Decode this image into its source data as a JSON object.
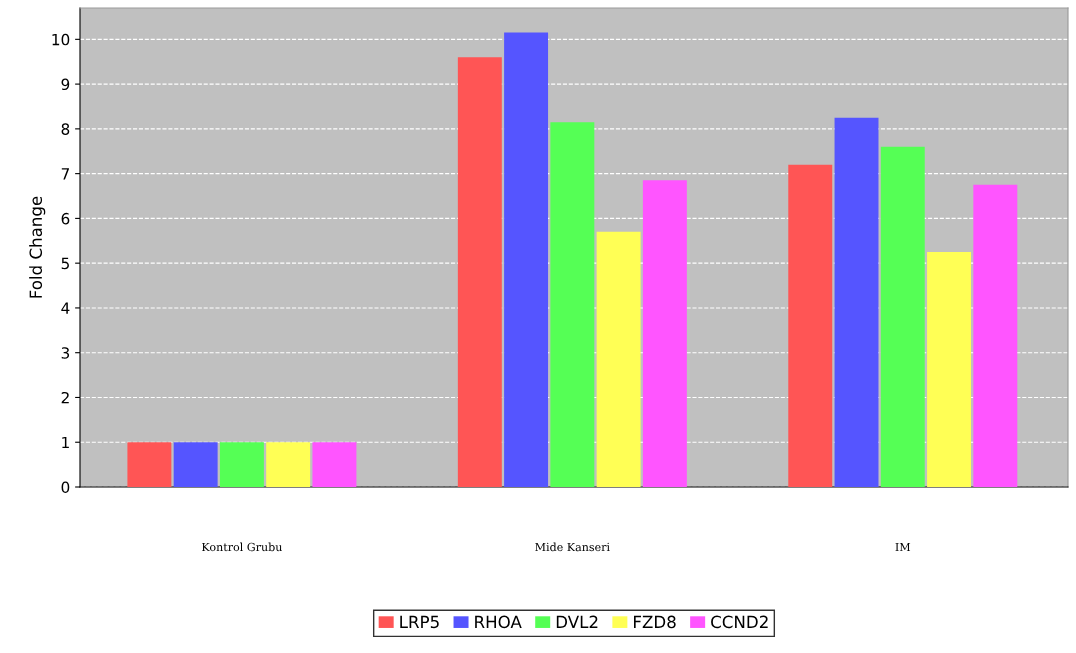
{
  "chart_data": {
    "type": "bar",
    "ylabel": "Fold Change",
    "categories": [
      "Kontrol Grubu",
      "Mide Kanseri",
      "IM"
    ],
    "series": [
      {
        "name": "LRP5",
        "color": "#ff5555",
        "values": [
          1,
          9.6,
          7.2
        ]
      },
      {
        "name": "RHOA",
        "color": "#5555ff",
        "values": [
          1,
          10.15,
          8.25
        ]
      },
      {
        "name": "DVL2",
        "color": "#55ff55",
        "values": [
          1,
          8.15,
          7.6
        ]
      },
      {
        "name": "FZD8",
        "color": "#ffff55",
        "values": [
          1,
          5.7,
          5.25
        ]
      },
      {
        "name": "CCND2",
        "color": "#ff55ff",
        "values": [
          1,
          6.85,
          6.75
        ]
      }
    ],
    "ylim": [
      0,
      10.7
    ],
    "yticks": [
      0,
      1,
      2,
      3,
      4,
      5,
      6,
      7,
      8,
      9,
      10
    ],
    "grid": "y",
    "legend": "bottom"
  }
}
